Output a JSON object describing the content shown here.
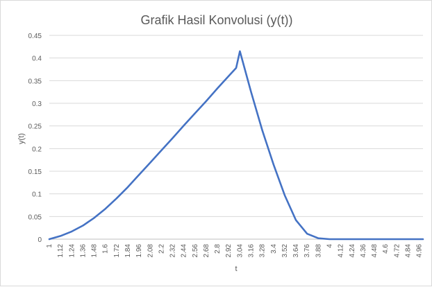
{
  "chart_data": {
    "type": "line",
    "title": "Grafik Hasil Konvolusi (y(t))",
    "xlabel": "t",
    "ylabel": "y(t)",
    "ylim": [
      0,
      0.45
    ],
    "y_ticks": [
      0,
      0.05,
      0.1,
      0.15,
      0.2,
      0.25,
      0.3,
      0.35,
      0.4,
      0.45
    ],
    "y_tick_labels": [
      "0",
      "0.05",
      "0.1",
      "0.15",
      "0.2",
      "0.25",
      "0.3",
      "0.35",
      "0.4",
      "0.45"
    ],
    "x_tick_labels": [
      "1",
      "1.12",
      "1.24",
      "1.36",
      "1.48",
      "1.6",
      "1.72",
      "1.84",
      "1.96",
      "2.08",
      "2.2",
      "2.32",
      "2.44",
      "2.56",
      "2.68",
      "2.8",
      "2.92",
      "3.04",
      "3.16",
      "3.28",
      "3.4",
      "3.52",
      "3.64",
      "3.76",
      "3.88",
      "4",
      "4.12",
      "4.24",
      "4.36",
      "4.48",
      "4.6",
      "4.72",
      "4.84",
      "4.96"
    ],
    "grid": "horizontal",
    "legend": "none",
    "series": [
      {
        "color": "#4472c4",
        "x": [
          1,
          1.12,
          1.24,
          1.36,
          1.48,
          1.6,
          1.72,
          1.84,
          1.96,
          2.08,
          2.2,
          2.32,
          2.44,
          2.56,
          2.68,
          2.8,
          2.92,
          3.0,
          3.04,
          3.16,
          3.28,
          3.4,
          3.52,
          3.64,
          3.76,
          3.88,
          4,
          4.12,
          4.24,
          4.36,
          4.48,
          4.6,
          4.72,
          4.84,
          4.96,
          5.0
        ],
        "y": [
          0,
          0.007,
          0.017,
          0.03,
          0.047,
          0.067,
          0.09,
          0.115,
          0.142,
          0.169,
          0.196,
          0.223,
          0.251,
          0.278,
          0.305,
          0.333,
          0.36,
          0.378,
          0.415,
          0.325,
          0.24,
          0.165,
          0.097,
          0.042,
          0.012,
          0.002,
          0,
          0,
          0,
          0,
          0,
          0,
          0,
          0,
          0,
          0
        ]
      }
    ]
  }
}
